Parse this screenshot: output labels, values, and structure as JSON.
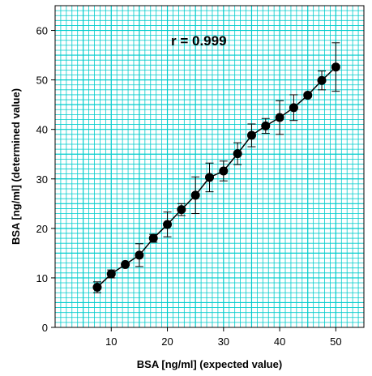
{
  "chart_data": {
    "type": "scatter",
    "title": "",
    "xlabel": "BSA [ng/ml] (expected value)",
    "ylabel": "BSA [ng/ml] (determined value)",
    "xlim": [
      0,
      55
    ],
    "ylim": [
      0,
      65
    ],
    "xticks": [
      10,
      20,
      30,
      40,
      50
    ],
    "yticks": [
      0,
      10,
      20,
      30,
      40,
      50,
      60
    ],
    "grid": true,
    "colors": {
      "grid": "#00cccc",
      "marker": "#000000",
      "line": "#000000"
    },
    "annotation": "r = 0.999",
    "series": [
      {
        "connected": true,
        "x": [
          7.5,
          10,
          12.5,
          15,
          17.5,
          20,
          22.5,
          25,
          27.5,
          30,
          32.5,
          35,
          37.5,
          40,
          42.5,
          45,
          47.5,
          50
        ],
        "y": [
          8.1,
          10.8,
          12.7,
          14.6,
          18.0,
          20.8,
          23.8,
          26.7,
          30.3,
          31.6,
          35.1,
          38.8,
          40.7,
          42.4,
          44.4,
          46.9,
          49.9,
          52.6
        ],
        "yerr": [
          1.1,
          0.8,
          0.3,
          2.3,
          0.8,
          2.5,
          1.2,
          3.7,
          2.9,
          2.0,
          2.2,
          2.3,
          1.5,
          3.4,
          2.6,
          0.4,
          1.9,
          4.9
        ]
      }
    ]
  }
}
